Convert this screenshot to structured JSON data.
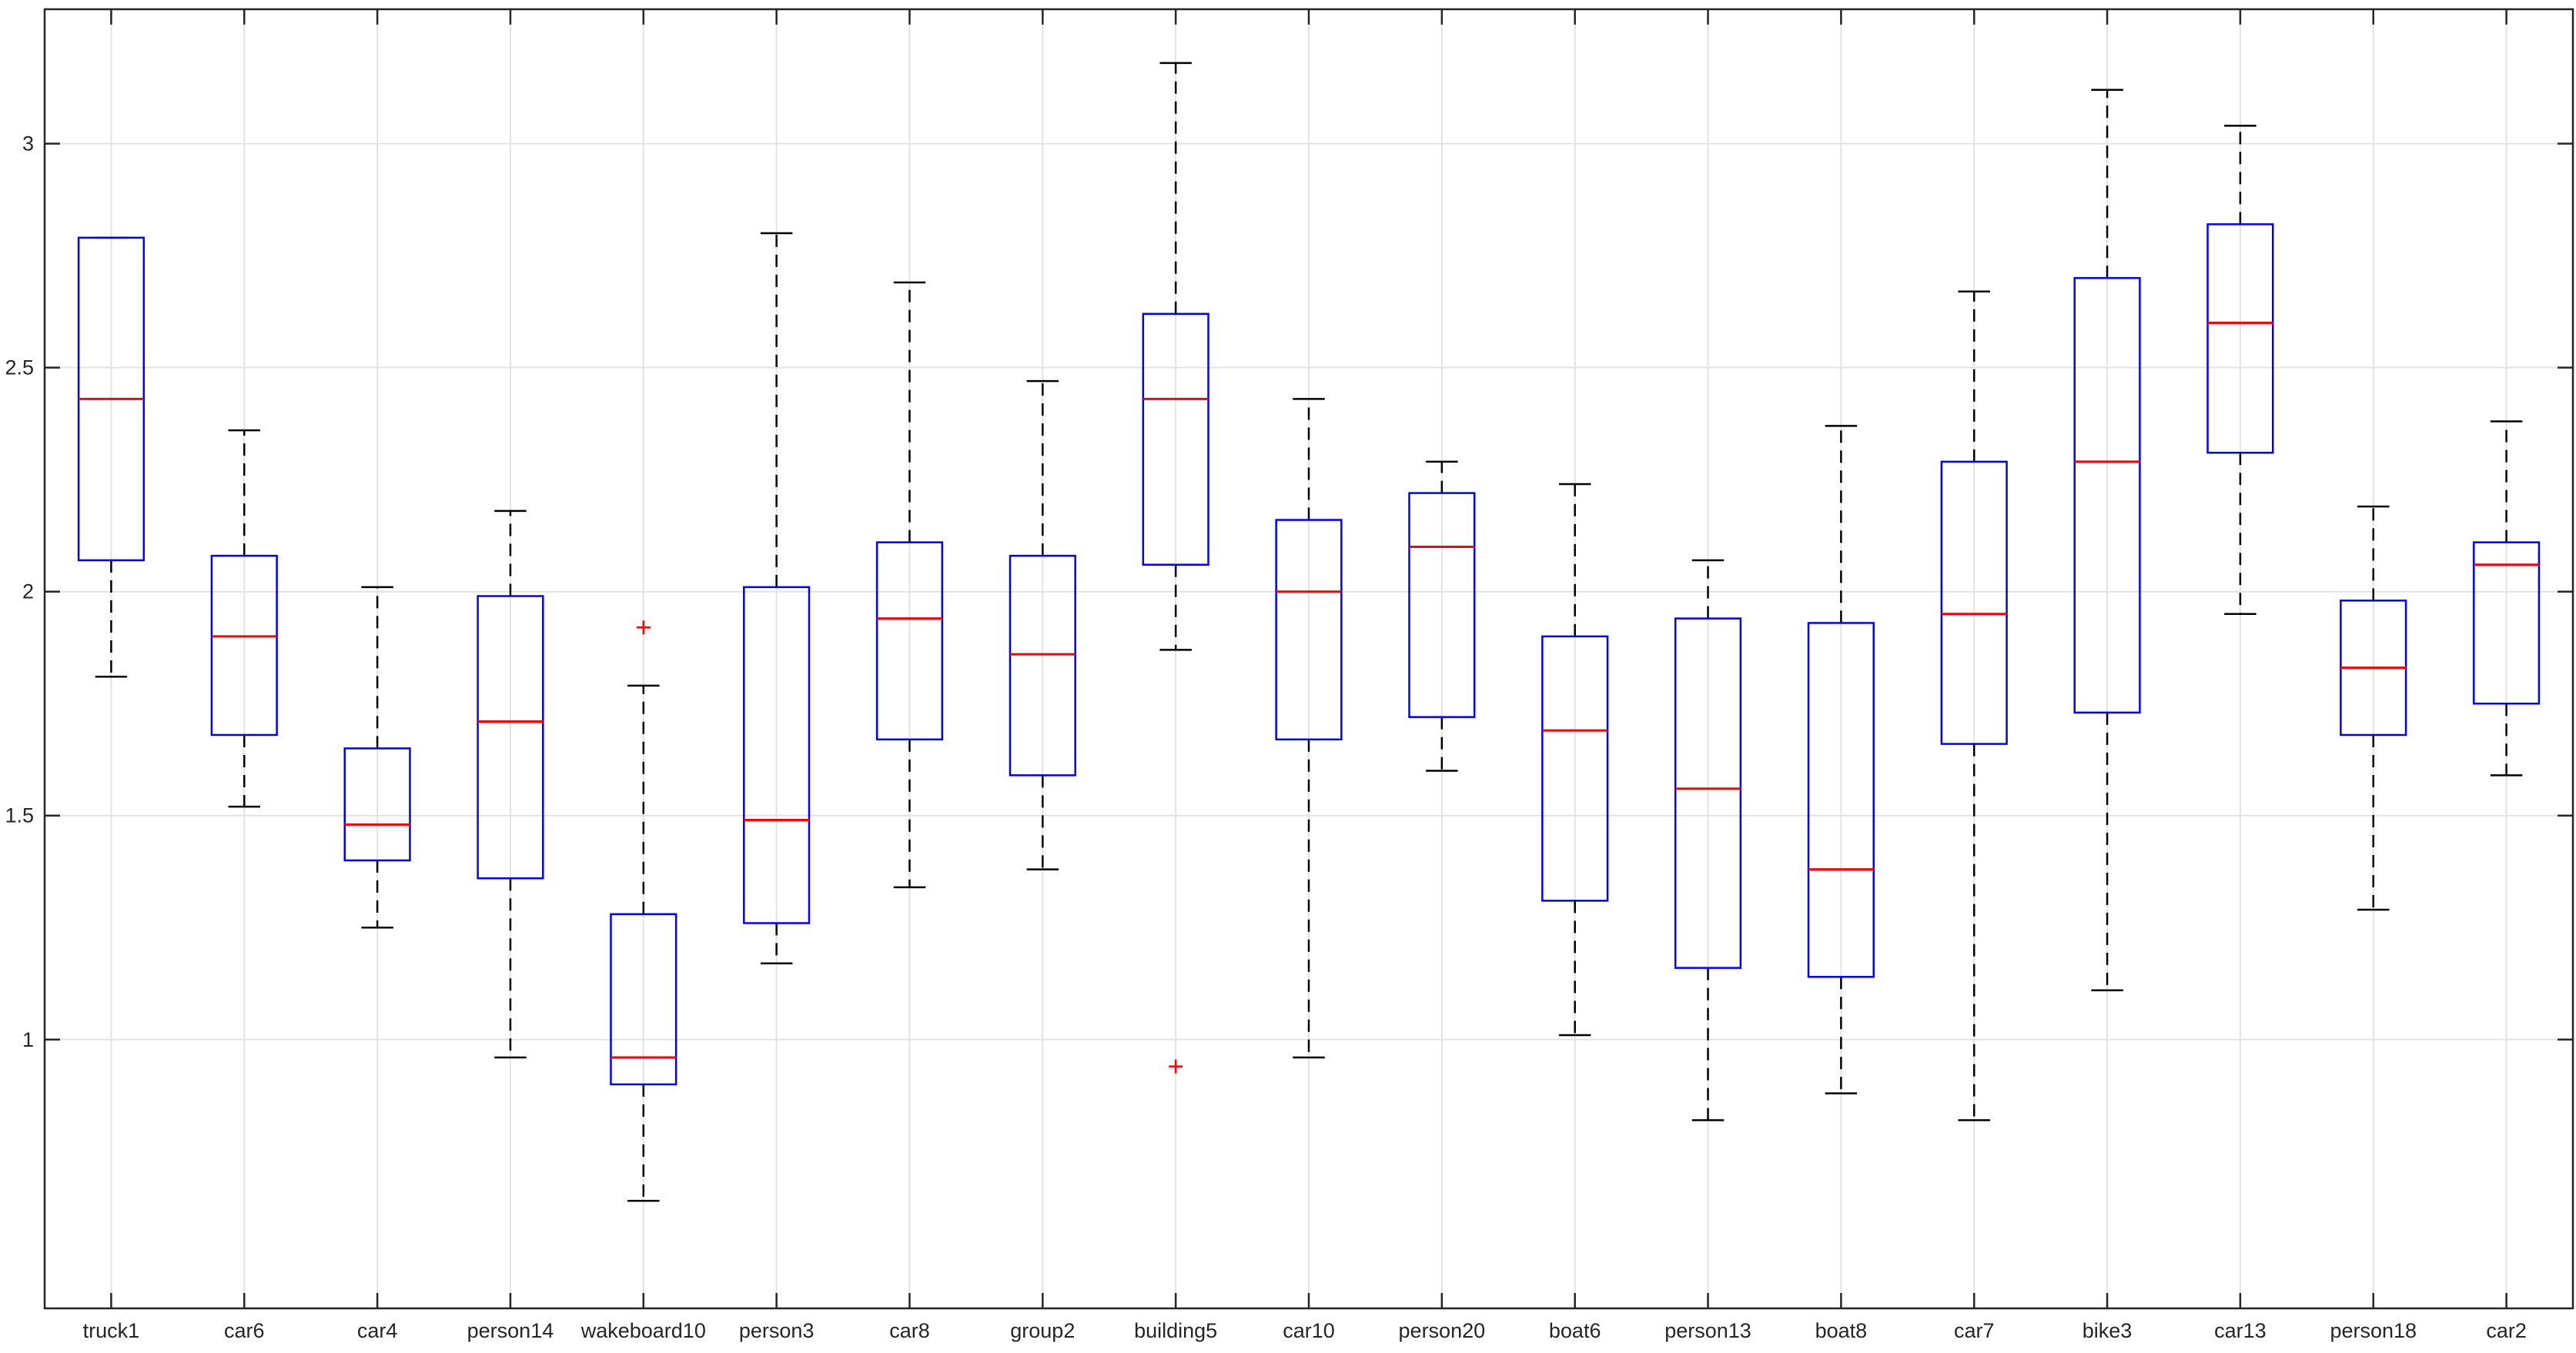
{
  "chart_data": {
    "type": "box",
    "title": "",
    "xlabel": "",
    "ylabel": "",
    "ylim": [
      0.4,
      3.3
    ],
    "yticks": [
      1,
      1.5,
      2,
      2.5,
      3
    ],
    "ytick_labels": [
      "1",
      "1.5",
      "2",
      "2.5",
      "3"
    ],
    "grid": true,
    "colors": {
      "box": "#0000ff",
      "median": "#ff0000",
      "whisker": "#000000",
      "outlier": "#ff0000",
      "grid": "#e3e3e3",
      "axes": "#262626"
    },
    "categories": [
      "truck1",
      "car6",
      "car4",
      "person14",
      "wakeboard10",
      "person3",
      "car8",
      "group2",
      "building5",
      "car10",
      "person20",
      "boat6",
      "person13",
      "boat8",
      "car7",
      "bike3",
      "car13",
      "person18",
      "car2"
    ],
    "boxes": [
      {
        "label": "truck1",
        "whisker_low": 1.81,
        "q1": 2.07,
        "median": 2.43,
        "q3": 2.79,
        "whisker_high": 2.79,
        "outliers": []
      },
      {
        "label": "car6",
        "whisker_low": 1.52,
        "q1": 1.68,
        "median": 1.9,
        "q3": 2.08,
        "whisker_high": 2.36,
        "outliers": []
      },
      {
        "label": "car4",
        "whisker_low": 1.25,
        "q1": 1.4,
        "median": 1.48,
        "q3": 1.65,
        "whisker_high": 2.01,
        "outliers": []
      },
      {
        "label": "person14",
        "whisker_low": 0.96,
        "q1": 1.36,
        "median": 1.71,
        "q3": 1.99,
        "whisker_high": 2.18,
        "outliers": []
      },
      {
        "label": "wakeboard10",
        "whisker_low": 0.64,
        "q1": 0.9,
        "median": 0.96,
        "q3": 1.28,
        "whisker_high": 1.79,
        "outliers": [
          1.92
        ]
      },
      {
        "label": "person3",
        "whisker_low": 1.17,
        "q1": 1.26,
        "median": 1.49,
        "q3": 2.01,
        "whisker_high": 2.8,
        "outliers": []
      },
      {
        "label": "car8",
        "whisker_low": 1.34,
        "q1": 1.67,
        "median": 1.94,
        "q3": 2.11,
        "whisker_high": 2.69,
        "outliers": []
      },
      {
        "label": "group2",
        "whisker_low": 1.38,
        "q1": 1.59,
        "median": 1.86,
        "q3": 2.08,
        "whisker_high": 2.47,
        "outliers": []
      },
      {
        "label": "building5",
        "whisker_low": 1.87,
        "q1": 2.06,
        "median": 2.43,
        "q3": 2.62,
        "whisker_high": 3.18,
        "outliers": [
          0.94
        ]
      },
      {
        "label": "car10",
        "whisker_low": 0.96,
        "q1": 1.67,
        "median": 2.0,
        "q3": 2.16,
        "whisker_high": 2.43,
        "outliers": []
      },
      {
        "label": "person20",
        "whisker_low": 1.6,
        "q1": 1.72,
        "median": 2.1,
        "q3": 2.22,
        "whisker_high": 2.29,
        "outliers": []
      },
      {
        "label": "boat6",
        "whisker_low": 1.01,
        "q1": 1.31,
        "median": 1.69,
        "q3": 1.9,
        "whisker_high": 2.24,
        "outliers": []
      },
      {
        "label": "person13",
        "whisker_low": 0.82,
        "q1": 1.16,
        "median": 1.56,
        "q3": 1.94,
        "whisker_high": 2.07,
        "outliers": []
      },
      {
        "label": "boat8",
        "whisker_low": 0.88,
        "q1": 1.14,
        "median": 1.38,
        "q3": 1.93,
        "whisker_high": 2.37,
        "outliers": []
      },
      {
        "label": "car7",
        "whisker_low": 0.82,
        "q1": 1.66,
        "median": 1.95,
        "q3": 2.29,
        "whisker_high": 2.67,
        "outliers": []
      },
      {
        "label": "bike3",
        "whisker_low": 1.11,
        "q1": 1.73,
        "median": 2.29,
        "q3": 2.7,
        "whisker_high": 3.12,
        "outliers": []
      },
      {
        "label": "car13",
        "whisker_low": 1.95,
        "q1": 2.31,
        "median": 2.6,
        "q3": 2.82,
        "whisker_high": 3.04,
        "outliers": []
      },
      {
        "label": "person18",
        "whisker_low": 1.29,
        "q1": 1.68,
        "median": 1.83,
        "q3": 1.98,
        "whisker_high": 2.19,
        "outliers": []
      },
      {
        "label": "car2",
        "whisker_low": 1.59,
        "q1": 1.75,
        "median": 2.06,
        "q3": 2.11,
        "whisker_high": 2.38,
        "outliers": []
      }
    ]
  }
}
